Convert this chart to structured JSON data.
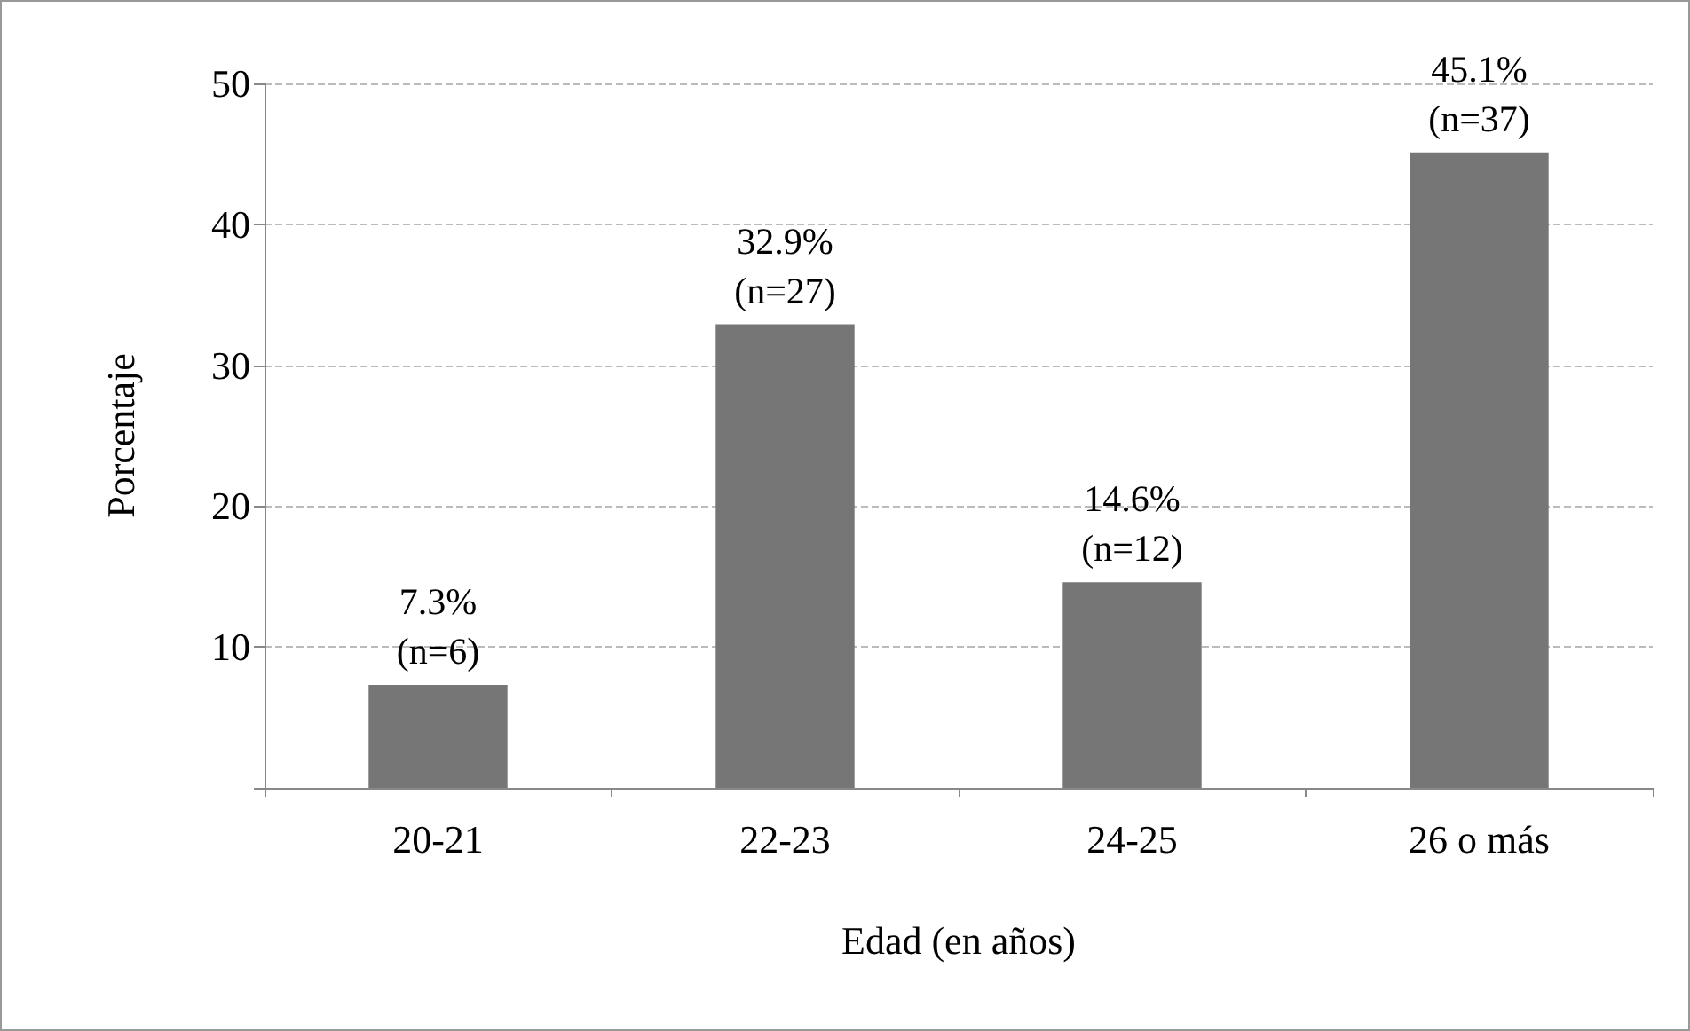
{
  "chart_data": {
    "type": "bar",
    "xlabel": "Edad (en años)",
    "ylabel": "Porcentaje",
    "categories": [
      "20-21",
      "22-23",
      "24-25",
      "26 o más"
    ],
    "values": [
      7.3,
      32.9,
      14.6,
      45.1
    ],
    "value_labels": [
      "7.3%\n(n=6)",
      "32.9%\n(n=27)",
      "14.6%\n(n=12)",
      "45.1%\n(n=37)"
    ],
    "color": "#767676",
    "ylim": [
      0,
      50
    ],
    "yticks": [
      {
        "value": 0,
        "label": null
      },
      10,
      20,
      30,
      40,
      50
    ],
    "grid": "y"
  }
}
